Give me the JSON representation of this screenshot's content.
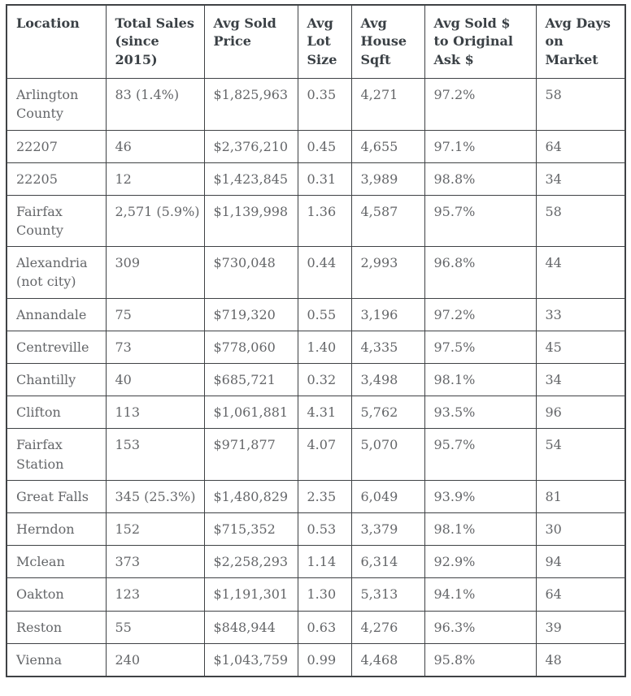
{
  "colors": {
    "border": "#3f4245",
    "header_text": "#3a4045",
    "body_text": "#646669",
    "background": "#ffffff"
  },
  "chart_data": {
    "type": "table",
    "columns": [
      "Location",
      "Total Sales (since 2015)",
      "Avg Sold Price",
      "Avg Lot Size",
      "Avg House Sqft",
      "Avg Sold $ to Original Ask $",
      "Avg Days on Market"
    ],
    "rows": [
      [
        "Arlington County",
        "83 (1.4%)",
        "$1,825,963",
        "0.35",
        "4,271",
        "97.2%",
        "58"
      ],
      [
        "22207",
        "46",
        "$2,376,210",
        "0.45",
        "4,655",
        "97.1%",
        "64"
      ],
      [
        "22205",
        "12",
        "$1,423,845",
        "0.31",
        "3,989",
        "98.8%",
        "34"
      ],
      [
        "Fairfax County",
        "2,571 (5.9%)",
        "$1,139,998",
        "1.36",
        "4,587",
        "95.7%",
        "58"
      ],
      [
        "Alexandria (not city)",
        "309",
        "$730,048",
        "0.44",
        "2,993",
        "96.8%",
        "44"
      ],
      [
        "Annandale",
        "75",
        "$719,320",
        "0.55",
        "3,196",
        "97.2%",
        "33"
      ],
      [
        "Centreville",
        "73",
        "$778,060",
        "1.40",
        "4,335",
        "97.5%",
        "45"
      ],
      [
        "Chantilly",
        "40",
        "$685,721",
        "0.32",
        "3,498",
        "98.1%",
        "34"
      ],
      [
        "Clifton",
        "113",
        "$1,061,881",
        "4.31",
        "5,762",
        "93.5%",
        "96"
      ],
      [
        "Fairfax Station",
        "153",
        "$971,877",
        "4.07",
        "5,070",
        "95.7%",
        "54"
      ],
      [
        "Great Falls",
        "345 (25.3%)",
        "$1,480,829",
        "2.35",
        "6,049",
        "93.9%",
        "81"
      ],
      [
        "Herndon",
        "152",
        "$715,352",
        "0.53",
        "3,379",
        "98.1%",
        "30"
      ],
      [
        "Mclean",
        "373",
        "$2,258,293",
        "1.14",
        "6,314",
        "92.9%",
        "94"
      ],
      [
        "Oakton",
        "123",
        "$1,191,301",
        "1.30",
        "5,313",
        "94.1%",
        "64"
      ],
      [
        "Reston",
        "55",
        "$848,944",
        "0.63",
        "4,276",
        "96.3%",
        "39"
      ],
      [
        "Vienna",
        "240",
        "$1,043,759",
        "0.99",
        "4,468",
        "95.8%",
        "48"
      ]
    ]
  }
}
